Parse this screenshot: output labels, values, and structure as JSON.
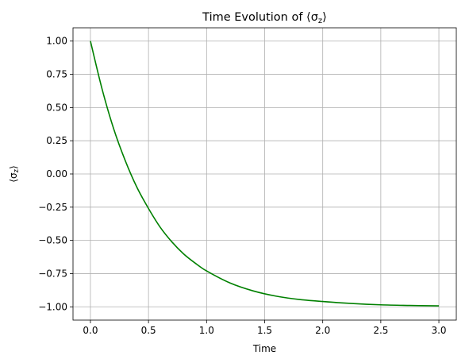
{
  "chart_data": {
    "type": "line",
    "title": "Time Evolution of ⟨σz⟩",
    "title_parts": {
      "prefix": "Time Evolution of ⟨σ",
      "sub": "z",
      "suffix": "⟩"
    },
    "xlabel": "Time",
    "ylabel": "⟨σz⟩",
    "ylabel_parts": {
      "prefix": "⟨σ",
      "sub": "z",
      "suffix": "⟩"
    },
    "xlim": [
      -0.15,
      3.15
    ],
    "ylim": [
      -1.1,
      1.1
    ],
    "xticks": [
      0.0,
      0.5,
      1.0,
      1.5,
      2.0,
      2.5,
      3.0
    ],
    "xtick_labels": [
      "0.0",
      "0.5",
      "1.0",
      "1.5",
      "2.0",
      "2.5",
      "3.0"
    ],
    "yticks": [
      1.0,
      0.75,
      0.5,
      0.25,
      0.0,
      -0.25,
      -0.5,
      -0.75,
      -1.0
    ],
    "ytick_labels": [
      "1.00",
      "0.75",
      "0.50",
      "0.25",
      "0.00",
      "−0.25",
      "−0.50",
      "−0.75",
      "−1.00"
    ],
    "grid": true,
    "series": [
      {
        "color": "#008000",
        "x": [
          0.0,
          0.1,
          0.2,
          0.3,
          0.4,
          0.5,
          0.6,
          0.7,
          0.8,
          0.9,
          1.0,
          1.2,
          1.4,
          1.6,
          1.8,
          2.0,
          2.25,
          2.5,
          2.75,
          3.0
        ],
        "y": [
          1.0,
          0.64,
          0.34,
          0.1,
          -0.1,
          -0.26,
          -0.4,
          -0.51,
          -0.6,
          -0.67,
          -0.73,
          -0.82,
          -0.88,
          -0.92,
          -0.945,
          -0.96,
          -0.975,
          -0.985,
          -0.99,
          -0.993
        ]
      }
    ]
  }
}
